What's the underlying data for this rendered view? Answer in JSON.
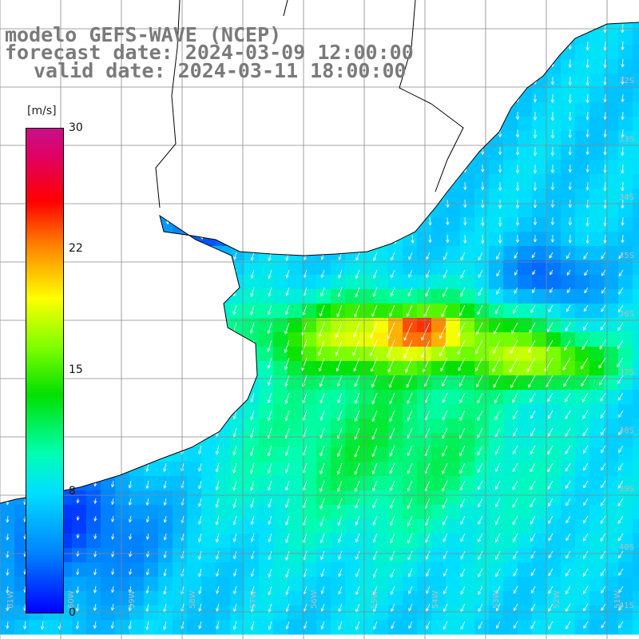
{
  "title": {
    "line1": "modelo GEFS-WAVE (NCEP)",
    "line2": "forecast date: 2024-03-09 12:00:00",
    "line3": "valid date: 2024-03-11 18:00:00"
  },
  "colorbar": {
    "unit": "[m/s]",
    "ticks": [
      "30",
      "22",
      "15",
      "8",
      "0"
    ],
    "range": [
      0,
      30
    ],
    "colors": [
      "#0000ff",
      "#0080ff",
      "#00e0ff",
      "#00ffb0",
      "#00e000",
      "#80ff00",
      "#ffff00",
      "#ff8000",
      "#ff0000",
      "#c8108a"
    ]
  },
  "grid": {
    "lat_labels": [
      "32S",
      "33S",
      "34S",
      "35S",
      "36S",
      "37S",
      "38S",
      "39S",
      "40S",
      "41S"
    ],
    "lon_labels": [
      "61W",
      "60W",
      "59W",
      "58W",
      "57W",
      "56W",
      "55W",
      "54W",
      "53W",
      "52W",
      "51W"
    ]
  },
  "colors": {
    "land": "#ffffff",
    "coast": "#000000",
    "grid": "#888888",
    "label": "#7a7a7a"
  }
}
